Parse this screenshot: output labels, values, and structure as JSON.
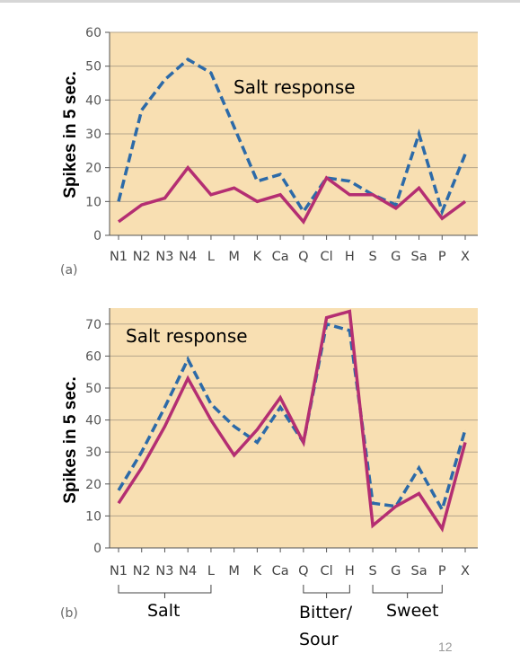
{
  "colors": {
    "plot_bg": "#f8dfb2",
    "dashed_series": "#2c6aa8",
    "solid_series": "#b42e72",
    "grid": "#b5a58b"
  },
  "slide_number": "12",
  "chart_data": [
    {
      "type": "line",
      "panel_label": "(a)",
      "annotation": "Salt response",
      "ylabel": "Spikes in 5 sec.",
      "xlabel": "",
      "ylim": [
        0,
        60
      ],
      "yticks": [
        0,
        10,
        20,
        30,
        40,
        50,
        60
      ],
      "grid": true,
      "categories": [
        "N1",
        "N2",
        "N3",
        "N4",
        "L",
        "M",
        "K",
        "Ca",
        "Q",
        "Cl",
        "H",
        "S",
        "G",
        "Sa",
        "P",
        "X"
      ],
      "series": [
        {
          "style": "dashed",
          "color": "#2c6aa8",
          "values": [
            10,
            37,
            46,
            52,
            48,
            32,
            16,
            18,
            7,
            17,
            16,
            12,
            9,
            30,
            7,
            24
          ]
        },
        {
          "style": "solid",
          "color": "#b42e72",
          "values": [
            4,
            9,
            11,
            20,
            12,
            14,
            10,
            12,
            4,
            17,
            12,
            12,
            8,
            14,
            5,
            10
          ]
        }
      ]
    },
    {
      "type": "line",
      "panel_label": "(b)",
      "annotation": "Salt response",
      "ylabel": "Spikes in 5 sec.",
      "xlabel": "",
      "ylim": [
        0,
        75
      ],
      "yticks": [
        0,
        10,
        20,
        30,
        40,
        50,
        60,
        70
      ],
      "grid": true,
      "categories": [
        "N1",
        "N2",
        "N3",
        "N4",
        "L",
        "M",
        "K",
        "Ca",
        "Q",
        "Cl",
        "H",
        "S",
        "G",
        "Sa",
        "P",
        "X"
      ],
      "series": [
        {
          "style": "dashed",
          "color": "#2c6aa8",
          "values": [
            18,
            30,
            44,
            59,
            45,
            38,
            33,
            44,
            33,
            70,
            68,
            14,
            13,
            25,
            12,
            37
          ]
        },
        {
          "style": "solid",
          "color": "#b42e72",
          "values": [
            14,
            25,
            38,
            53,
            40,
            29,
            37,
            47,
            33,
            72,
            74,
            7,
            13,
            17,
            6,
            33
          ]
        }
      ],
      "groups": [
        {
          "label": "Salt",
          "from": "N1",
          "to": "L"
        },
        {
          "label": "Bitter/ Sour",
          "from": "Q",
          "to": "H"
        },
        {
          "label": "Sweet",
          "from": "S",
          "to": "P"
        }
      ]
    }
  ]
}
